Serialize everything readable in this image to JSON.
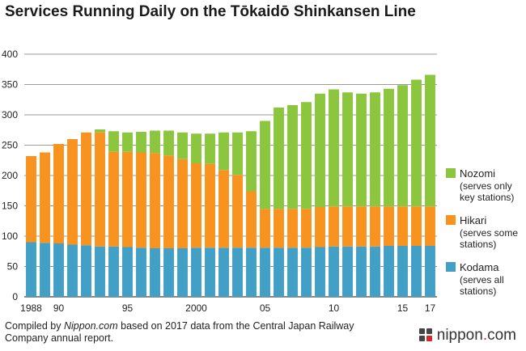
{
  "title": "Services Running Daily on the Tōkaidō Shinkansen Line",
  "footer": {
    "pre": "Compiled by ",
    "source_site": "Nippon.com",
    "post": " based on 2017 data from the Central Japan Railway Company annual report."
  },
  "brand": {
    "name": "nippon",
    "dot": ".",
    "tld": "com",
    "mark_icon": "nippon-logo-icon"
  },
  "chart_data": {
    "type": "bar",
    "stacked": true,
    "years": [
      1988,
      1989,
      1990,
      1991,
      1992,
      1993,
      1994,
      1995,
      1996,
      1997,
      1998,
      1999,
      2000,
      2001,
      2002,
      2003,
      2004,
      2005,
      2006,
      2007,
      2008,
      2009,
      2010,
      2011,
      2012,
      2013,
      2014,
      2015,
      2016,
      2017
    ],
    "x_tick_labels": [
      {
        "year": 1988,
        "label": "1988"
      },
      {
        "year": 1990,
        "label": "90"
      },
      {
        "year": 1995,
        "label": "95"
      },
      {
        "year": 2000,
        "label": "2000"
      },
      {
        "year": 2005,
        "label": "05"
      },
      {
        "year": 2010,
        "label": "10"
      },
      {
        "year": 2015,
        "label": "15"
      },
      {
        "year": 2017,
        "label": "17"
      }
    ],
    "ylim": [
      0,
      400
    ],
    "y_ticks": [
      0,
      50,
      100,
      150,
      200,
      250,
      300,
      350,
      400
    ],
    "grid": true,
    "legend_position": "right",
    "series": [
      {
        "name": "Kodama",
        "sub": [
          "(serves all",
          "stations)"
        ],
        "color": "#42a0c6",
        "values": [
          90,
          89,
          88,
          86,
          85,
          83,
          83,
          82,
          81,
          80,
          80,
          80,
          81,
          81,
          81,
          81,
          81,
          81,
          81,
          81,
          81,
          82,
          83,
          83,
          83,
          83,
          84,
          84,
          84,
          84
        ]
      },
      {
        "name": "Hikari",
        "sub": [
          "(serves some",
          "stations)"
        ],
        "color": "#f7931e",
        "values": [
          142,
          149,
          164,
          174,
          186,
          188,
          156,
          157,
          157,
          157,
          153,
          147,
          139,
          138,
          128,
          120,
          93,
          64,
          64,
          64,
          64,
          66,
          66,
          66,
          66,
          66,
          65,
          65,
          65,
          65
        ]
      },
      {
        "name": "Nozomi",
        "sub": [
          "(serves only",
          "key stations)"
        ],
        "color": "#8cc63f",
        "values": [
          0,
          0,
          0,
          0,
          0,
          5,
          34,
          32,
          34,
          37,
          41,
          44,
          49,
          50,
          62,
          70,
          99,
          145,
          167,
          171,
          176,
          187,
          193,
          188,
          186,
          188,
          194,
          200,
          209,
          217
        ]
      }
    ]
  }
}
